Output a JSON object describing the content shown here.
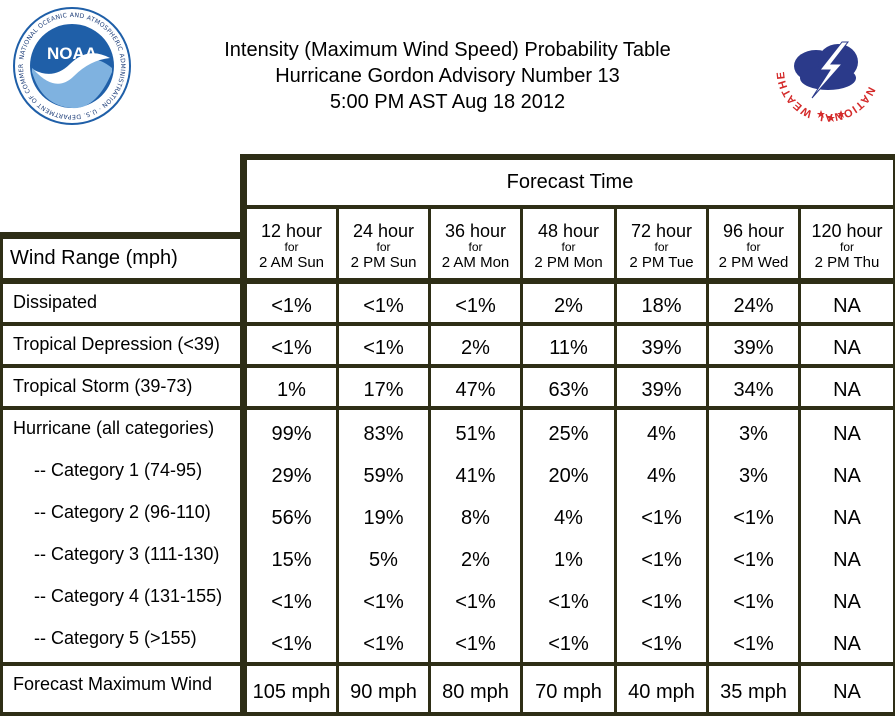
{
  "header": {
    "title_line1": "Intensity (Maximum Wind Speed) Probability Table",
    "title_line2": "Hurricane Gordon Advisory Number 13",
    "title_line3": "5:00 PM AST Aug 18 2012"
  },
  "logos": {
    "left_text": "NOAA",
    "left_ring_text": "NATIONAL OCEANIC AND ATMOSPHERIC ADMINISTRATION · U.S. DEPARTMENT OF COMMERCE",
    "right_ring_text": "NATIONAL WEATHER SERVICE"
  },
  "colors": {
    "border": "#2e2e16",
    "noaa_blue": "#1f5fa8",
    "nws_red": "#d42a2a",
    "nws_blue": "#2b3a8a"
  },
  "table": {
    "forecast_time_label": "Forecast Time",
    "wind_range_label": "Wind Range (mph)",
    "columns": [
      {
        "hours": "12 hour",
        "for": "for",
        "time": "2 AM Sun"
      },
      {
        "hours": "24 hour",
        "for": "for",
        "time": "2 PM Sun"
      },
      {
        "hours": "36 hour",
        "for": "for",
        "time": "2 AM Mon"
      },
      {
        "hours": "48 hour",
        "for": "for",
        "time": "2 PM Mon"
      },
      {
        "hours": "72 hour",
        "for": "for",
        "time": "2 PM Tue"
      },
      {
        "hours": "96 hour",
        "for": "for",
        "time": "2 PM Wed"
      },
      {
        "hours": "120 hour",
        "for": "for",
        "time": "2 PM Thu"
      }
    ],
    "rows": [
      {
        "label": "Dissipated",
        "values": [
          "<1%",
          "<1%",
          "<1%",
          "2%",
          "18%",
          "24%",
          "NA"
        ]
      },
      {
        "label": "Tropical Depression (<39)",
        "values": [
          "<1%",
          "<1%",
          "2%",
          "11%",
          "39%",
          "39%",
          "NA"
        ]
      },
      {
        "label": "Tropical Storm (39-73)",
        "values": [
          "1%",
          "17%",
          "47%",
          "63%",
          "39%",
          "34%",
          "NA"
        ]
      }
    ],
    "hurricane": {
      "label": "Hurricane (all categories)",
      "values": [
        "99%",
        "83%",
        "51%",
        "25%",
        "4%",
        "3%",
        "NA"
      ],
      "categories": [
        {
          "label": "-- Category 1 (74-95)",
          "values": [
            "29%",
            "59%",
            "41%",
            "20%",
            "4%",
            "3%",
            "NA"
          ]
        },
        {
          "label": "-- Category 2 (96-110)",
          "values": [
            "56%",
            "19%",
            "8%",
            "4%",
            "<1%",
            "<1%",
            "NA"
          ]
        },
        {
          "label": "-- Category 3 (111-130)",
          "values": [
            "15%",
            "5%",
            "2%",
            "1%",
            "<1%",
            "<1%",
            "NA"
          ]
        },
        {
          "label": "-- Category 4 (131-155)",
          "values": [
            "<1%",
            "<1%",
            "<1%",
            "<1%",
            "<1%",
            "<1%",
            "NA"
          ]
        },
        {
          "label": "-- Category 5 (>155)",
          "values": [
            "<1%",
            "<1%",
            "<1%",
            "<1%",
            "<1%",
            "<1%",
            "NA"
          ]
        }
      ]
    },
    "max_wind": {
      "label": "Forecast Maximum Wind",
      "values": [
        "105 mph",
        "90 mph",
        "80 mph",
        "70 mph",
        "40 mph",
        "35 mph",
        "NA"
      ]
    }
  }
}
